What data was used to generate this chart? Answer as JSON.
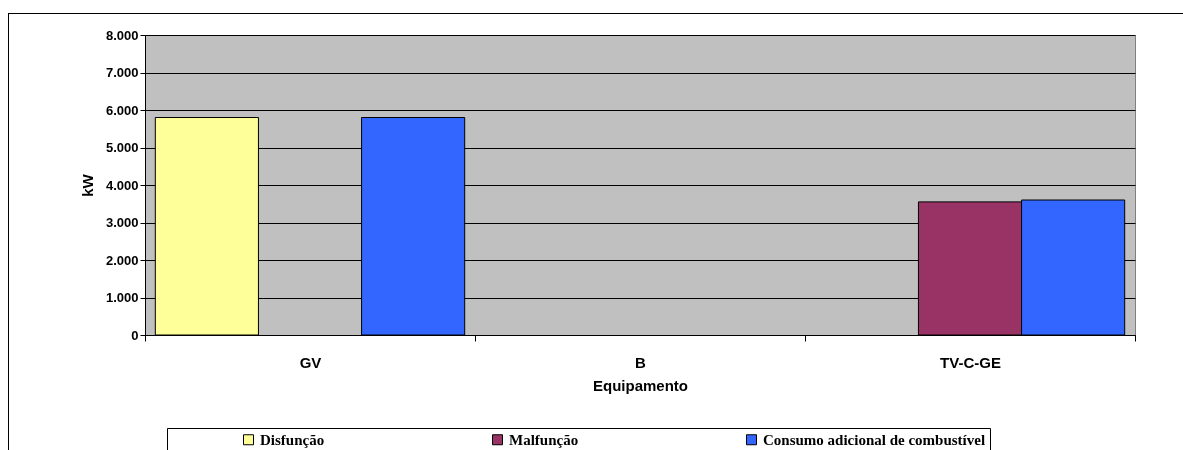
{
  "chart_data": {
    "type": "bar",
    "xlabel": "Equipamento",
    "ylabel": "kW",
    "categories": [
      "GV",
      "B",
      "TV-C-GE"
    ],
    "series": [
      {
        "name": "Disfunção",
        "color": "#ffff99",
        "values": [
          5800,
          null,
          null
        ]
      },
      {
        "name": "Malfunção",
        "color": "#993366",
        "values": [
          null,
          null,
          3550
        ]
      },
      {
        "name": "Consumo adicional de combustível",
        "color": "#3366ff",
        "values": [
          5800,
          null,
          3600
        ]
      }
    ],
    "ylim": [
      0,
      8000
    ],
    "yticks": [
      0,
      {
        "value": 1000,
        "label": "1.000"
      },
      {
        "value": 2000,
        "label": "2.000"
      },
      {
        "value": 3000,
        "label": "3.000"
      },
      {
        "value": 4000,
        "label": "4.000"
      },
      {
        "value": 5000,
        "label": "5.000"
      },
      {
        "value": 6000,
        "label": "6.000"
      },
      {
        "value": 7000,
        "label": "7.000"
      },
      {
        "value": 8000,
        "label": "8.000"
      }
    ],
    "grid": "y",
    "legend": "bottom"
  }
}
